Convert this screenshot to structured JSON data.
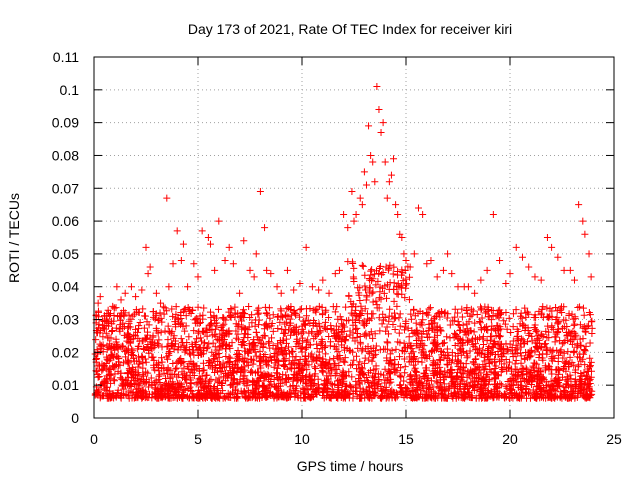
{
  "chart_data": {
    "type": "scatter",
    "title": "Day 173 of 2021, Rate Of TEC Index for receiver kiri",
    "xlabel": "GPS time / hours",
    "ylabel": "ROTI / TECUs",
    "xlim": [
      0,
      25
    ],
    "ylim": [
      0,
      0.11
    ],
    "xticks": [
      0,
      5,
      10,
      15,
      20,
      25
    ],
    "xtick_labels": [
      "0",
      "5",
      "10",
      "15",
      "20",
      "25"
    ],
    "yticks": [
      0,
      0.01,
      0.02,
      0.03,
      0.04,
      0.05,
      0.06,
      0.07,
      0.08,
      0.09,
      0.1,
      0.11
    ],
    "ytick_labels": [
      "0",
      "0.01",
      "0.02",
      "0.03",
      "0.04",
      "0.05",
      "0.06",
      "0.07",
      "0.08",
      "0.09",
      "0.1",
      "0.11"
    ],
    "grid": true,
    "legend": "none",
    "marker": "plus",
    "color": "#ff0000",
    "series": [
      {
        "x": [
          0.1,
          0.2,
          0.3,
          0.5,
          0.7,
          0.9,
          1.1,
          1.3,
          1.5,
          1.8,
          2.0,
          2.3,
          2.5,
          2.6,
          2.7,
          3.0,
          3.2,
          3.5,
          3.6,
          3.8,
          4.0,
          4.2,
          4.3,
          4.5,
          4.8,
          5.0,
          5.2,
          5.5,
          5.6,
          5.8,
          6.0,
          6.3,
          6.5,
          6.7,
          7.0,
          7.2,
          7.5,
          7.7,
          7.8,
          8.0,
          8.2,
          8.3,
          8.5,
          8.8,
          9.0,
          9.3,
          9.6,
          9.9,
          10.2,
          10.5,
          10.8,
          11.0,
          11.3,
          11.6,
          11.8,
          12.0,
          12.2,
          12.4,
          12.5,
          12.6,
          12.8,
          12.9,
          13.0,
          13.1,
          13.2,
          13.3,
          13.4,
          13.5,
          13.6,
          13.7,
          13.8,
          13.9,
          14.0,
          14.1,
          14.2,
          14.3,
          14.4,
          14.5,
          14.6,
          14.7,
          14.8,
          14.9,
          15.0,
          15.2,
          15.4,
          15.6,
          15.8,
          16.0,
          16.2,
          16.5,
          16.8,
          17.0,
          17.2,
          17.5,
          17.8,
          18.0,
          18.3,
          18.6,
          18.9,
          19.2,
          19.5,
          19.8,
          20.0,
          20.3,
          20.6,
          20.9,
          21.2,
          21.5,
          21.8,
          22.0,
          22.3,
          22.6,
          22.9,
          23.1,
          23.3,
          23.5,
          23.6,
          23.8,
          23.9
        ],
        "y": [
          0.029,
          0.035,
          0.037,
          0.031,
          0.028,
          0.034,
          0.04,
          0.036,
          0.038,
          0.04,
          0.037,
          0.039,
          0.052,
          0.044,
          0.046,
          0.038,
          0.035,
          0.067,
          0.04,
          0.047,
          0.057,
          0.048,
          0.053,
          0.04,
          0.047,
          0.043,
          0.057,
          0.055,
          0.053,
          0.045,
          0.06,
          0.048,
          0.052,
          0.047,
          0.038,
          0.054,
          0.045,
          0.043,
          0.05,
          0.069,
          0.058,
          0.045,
          0.044,
          0.04,
          0.038,
          0.045,
          0.039,
          0.041,
          0.052,
          0.04,
          0.039,
          0.042,
          0.038,
          0.044,
          0.045,
          0.062,
          0.058,
          0.069,
          0.06,
          0.062,
          0.067,
          0.065,
          0.075,
          0.071,
          0.089,
          0.08,
          0.078,
          0.072,
          0.101,
          0.094,
          0.087,
          0.09,
          0.078,
          0.067,
          0.072,
          0.074,
          0.079,
          0.065,
          0.062,
          0.056,
          0.055,
          0.05,
          0.048,
          0.046,
          0.05,
          0.064,
          0.062,
          0.047,
          0.048,
          0.043,
          0.045,
          0.05,
          0.044,
          0.04,
          0.04,
          0.04,
          0.038,
          0.042,
          0.045,
          0.062,
          0.048,
          0.041,
          0.044,
          0.052,
          0.049,
          0.046,
          0.043,
          0.042,
          0.055,
          0.052,
          0.049,
          0.045,
          0.045,
          0.042,
          0.065,
          0.06,
          0.056,
          0.05,
          0.043
        ]
      }
    ]
  }
}
